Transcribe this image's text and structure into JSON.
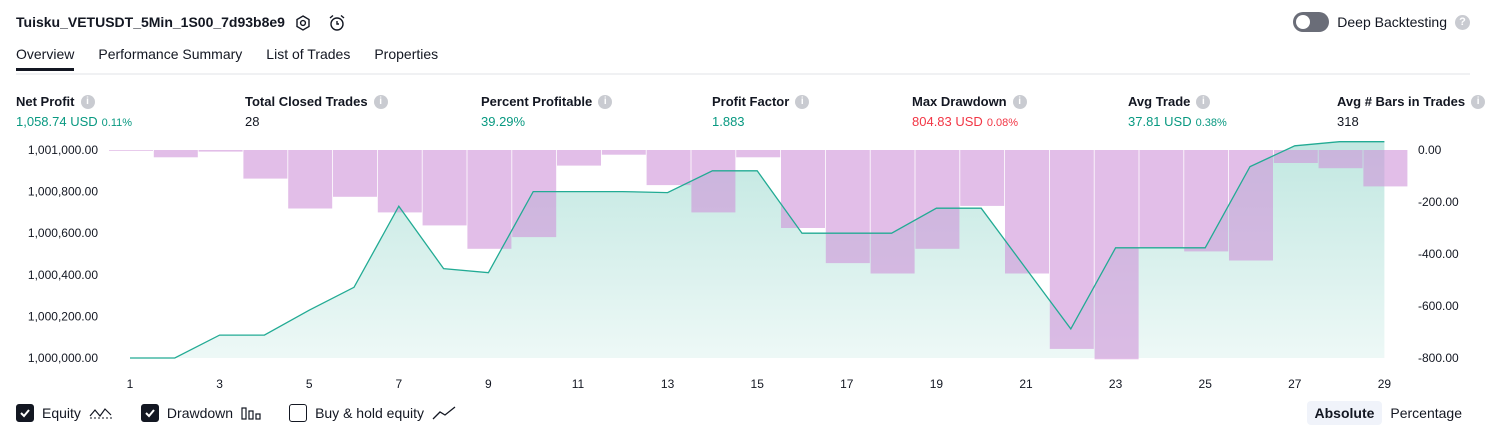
{
  "header": {
    "title": "Tuisku_VETUSDT_5Min_1S00_7d93b8e9",
    "deep_backtesting_label": "Deep Backtesting"
  },
  "tabs": [
    {
      "label": "Overview",
      "active": true
    },
    {
      "label": "Performance Summary",
      "active": false
    },
    {
      "label": "List of Trades",
      "active": false
    },
    {
      "label": "Properties",
      "active": false
    }
  ],
  "metrics": [
    {
      "label": "Net Profit",
      "value": "1,058.74 USD",
      "pct": "0.11%",
      "color": "#089981"
    },
    {
      "label": "Total Closed Trades",
      "value": "28",
      "pct": "",
      "color": "#131722"
    },
    {
      "label": "Percent Profitable",
      "value": "39.29%",
      "pct": "",
      "color": "#089981"
    },
    {
      "label": "Profit Factor",
      "value": "1.883",
      "pct": "",
      "color": "#089981"
    },
    {
      "label": "Max Drawdown",
      "value": "804.83 USD",
      "pct": "0.08%",
      "color": "#f23645"
    },
    {
      "label": "Avg Trade",
      "value": "37.81 USD",
      "pct": "0.38%",
      "color": "#089981"
    },
    {
      "label": "Avg # Bars in Trades",
      "value": "318",
      "pct": "",
      "color": "#131722"
    }
  ],
  "chart_data": {
    "type": "area",
    "x_ticks": [
      "1",
      "3",
      "5",
      "7",
      "9",
      "11",
      "13",
      "15",
      "17",
      "19",
      "21",
      "23",
      "25",
      "27",
      "29"
    ],
    "y_left_ticks": [
      "1,001,000.00",
      "1,000,800.00",
      "1,000,600.00",
      "1,000,400.00",
      "1,000,200.00",
      "1,000,000.00"
    ],
    "y_right_ticks": [
      "0.00",
      "-200.00",
      "-400.00",
      "-600.00",
      "-800.00"
    ],
    "y_left_range": [
      1000000,
      1001000
    ],
    "y_right_range": [
      -800,
      0
    ],
    "equity_color": "#22ab94",
    "drawdown_color": "#ce93d8",
    "equity": {
      "x": [
        1,
        2,
        3,
        4,
        5,
        6,
        7,
        8,
        9,
        10,
        11,
        12,
        13,
        14,
        15,
        16,
        17,
        18,
        19,
        20,
        21,
        22,
        23,
        24,
        25,
        26,
        27,
        28,
        29
      ],
      "values": [
        1000000,
        1000000,
        1000110,
        1000110,
        1000230,
        1000340,
        1000730,
        1000430,
        1000410,
        1000800,
        1000800,
        1000800,
        1000795,
        1000900,
        1000900,
        1000600,
        1000600,
        1000600,
        1000720,
        1000720,
        1000430,
        1000140,
        1000530,
        1000530,
        1000530,
        1000920,
        1001020,
        1001040,
        1001040
      ]
    },
    "drawdown": {
      "x": [
        1,
        2,
        3,
        4,
        5,
        6,
        7,
        8,
        9,
        10,
        11,
        12,
        13,
        14,
        15,
        16,
        17,
        18,
        19,
        20,
        21,
        22,
        23,
        24,
        25,
        26,
        27,
        28,
        29
      ],
      "values": [
        -3,
        -28,
        -6,
        -110,
        -225,
        -180,
        -240,
        -290,
        -380,
        -335,
        -60,
        -18,
        -135,
        -240,
        -28,
        -300,
        -435,
        -475,
        -380,
        -215,
        -475,
        -765,
        -805,
        -375,
        -390,
        -425,
        -50,
        -70,
        -140
      ]
    }
  },
  "legend": {
    "equity_label": "Equity",
    "drawdown_label": "Drawdown",
    "buyhold_label": "Buy & hold equity",
    "equity_checked": true,
    "drawdown_checked": true,
    "buyhold_checked": false
  },
  "mode": {
    "absolute": "Absolute",
    "percentage": "Percentage",
    "selected": "Absolute"
  }
}
